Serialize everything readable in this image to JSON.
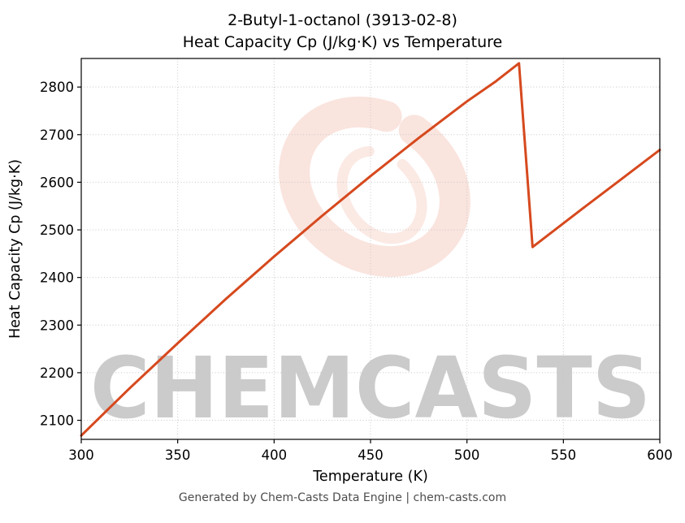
{
  "titles": {
    "line1": "2-Butyl-1-octanol (3913-02-8)",
    "line2": "Heat Capacity Cp (J/kg·K) vs Temperature"
  },
  "footer": {
    "text": "Generated by Chem-Casts Data Engine | chem-casts.com"
  },
  "watermark": {
    "text": "CHEMCASTS",
    "color": "#dd4a22"
  },
  "chart_data": {
    "type": "line",
    "title": "2-Butyl-1-octanol (3913-02-8) — Heat Capacity Cp (J/kg·K) vs Temperature",
    "xlabel": "Temperature (K)",
    "ylabel": "Heat Capacity Cp (J/kg·K)",
    "xlim": [
      300,
      600
    ],
    "ylim": [
      2060,
      2860
    ],
    "xticks": [
      300,
      350,
      400,
      450,
      500,
      550,
      600
    ],
    "yticks": [
      2100,
      2200,
      2300,
      2400,
      2500,
      2600,
      2700,
      2800
    ],
    "grid": true,
    "legend": false,
    "line_color": "#d6491e",
    "series": [
      {
        "name": "Heat Capacity Cp",
        "points": [
          [
            300,
            2068
          ],
          [
            325,
            2167
          ],
          [
            350,
            2262
          ],
          [
            375,
            2355
          ],
          [
            400,
            2444
          ],
          [
            425,
            2530
          ],
          [
            450,
            2613
          ],
          [
            475,
            2693
          ],
          [
            500,
            2770
          ],
          [
            515,
            2812
          ],
          [
            527,
            2850
          ],
          [
            534,
            2464
          ],
          [
            560,
            2545
          ],
          [
            600,
            2668
          ]
        ]
      }
    ]
  }
}
